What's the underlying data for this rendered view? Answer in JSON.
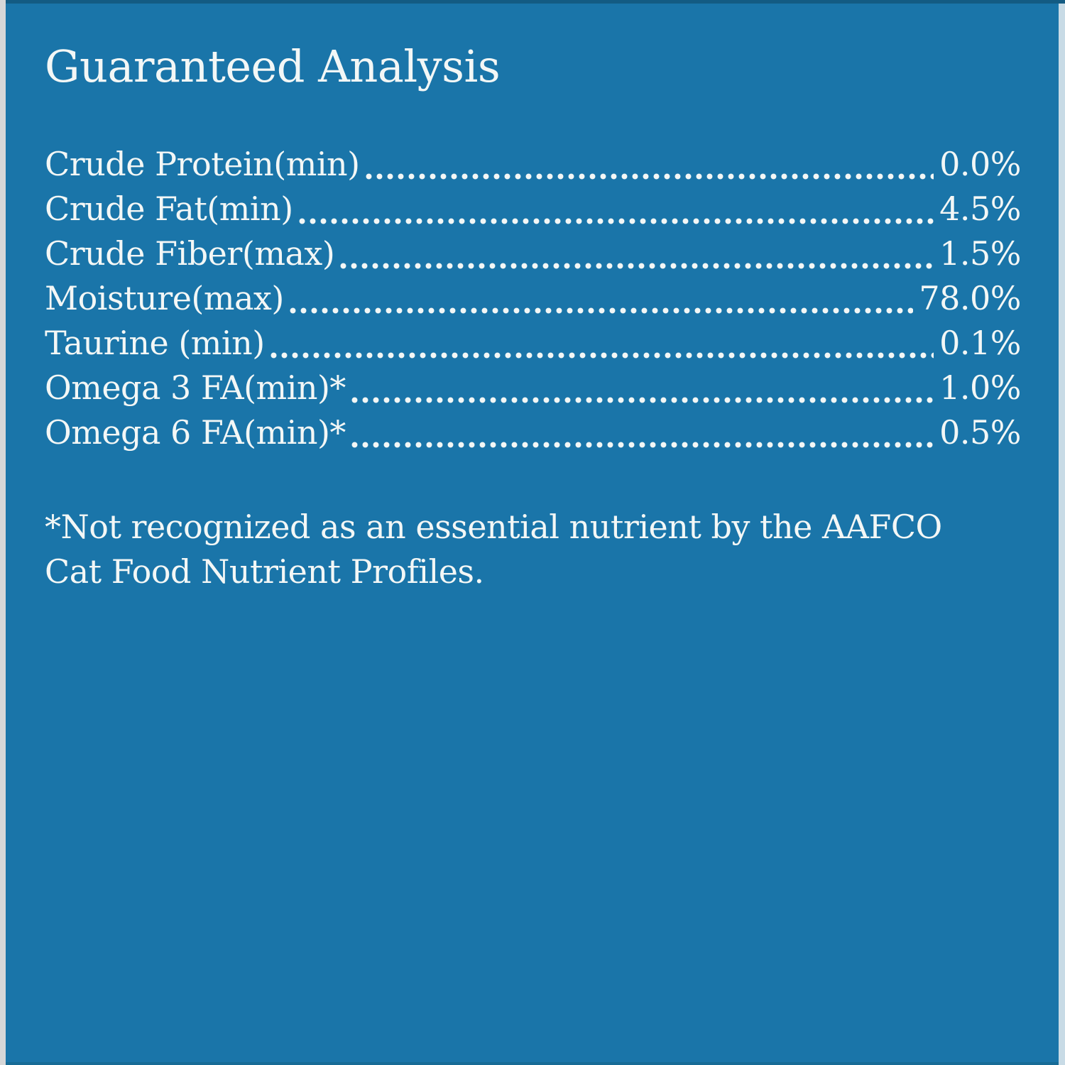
{
  "panel": {
    "title": "Guaranteed Analysis",
    "rows": [
      {
        "label": "Crude Protein(min)",
        "value": "0.0%"
      },
      {
        "label": "Crude Fat(min)",
        "value": "4.5%"
      },
      {
        "label": "Crude Fiber(max)",
        "value": "1.5%"
      },
      {
        "label": "Moisture(max)",
        "value": "78.0%"
      },
      {
        "label": "Taurine (min)",
        "value": "0.1%"
      },
      {
        "label": "Omega 3 FA(min)*",
        "value": "1.0%"
      },
      {
        "label": "Omega 6 FA(min)*",
        "value": "0.5%"
      }
    ],
    "footnote_lines": [
      "*Not recognized as an essential nutrient by the AAFCO",
      "Cat Food Nutrient Profiles."
    ]
  },
  "colors": {
    "background": "#1A75A9",
    "text": "#F3F7F6",
    "top_strip": "#135B83",
    "left_strip": "#D6D7D8",
    "right_strip": "#C8DBE6",
    "bottom_strip": "#176B96"
  }
}
